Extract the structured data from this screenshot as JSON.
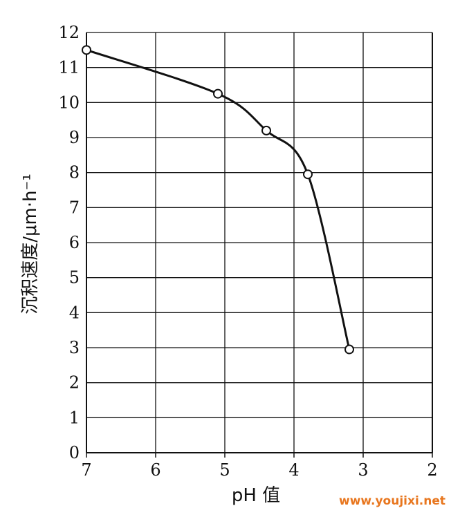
{
  "chart_data": {
    "type": "line",
    "title": "",
    "xlabel": "pH 值",
    "ylabel": "沉积速度/μm·h⁻¹",
    "xlim": [
      7,
      2
    ],
    "ylim": [
      0,
      12
    ],
    "x_reversed": true,
    "grid": true,
    "x_ticks": [
      "7",
      "6",
      "5",
      "4",
      "3",
      "2"
    ],
    "y_ticks": [
      "0",
      "1",
      "2",
      "3",
      "4",
      "5",
      "6",
      "7",
      "8",
      "9",
      "10",
      "11",
      "12"
    ],
    "series": [
      {
        "x": [
          7.0,
          5.1,
          4.4,
          3.8,
          3.2
        ],
        "y": [
          11.5,
          10.25,
          9.2,
          7.95,
          2.95
        ],
        "marker": "open-circle",
        "smooth": true
      }
    ]
  },
  "watermark": {
    "text": "www.youjixi.net",
    "color": "#e8761e"
  },
  "colors": {
    "line": "#111111",
    "grid": "#111111",
    "background": "#ffffff"
  }
}
